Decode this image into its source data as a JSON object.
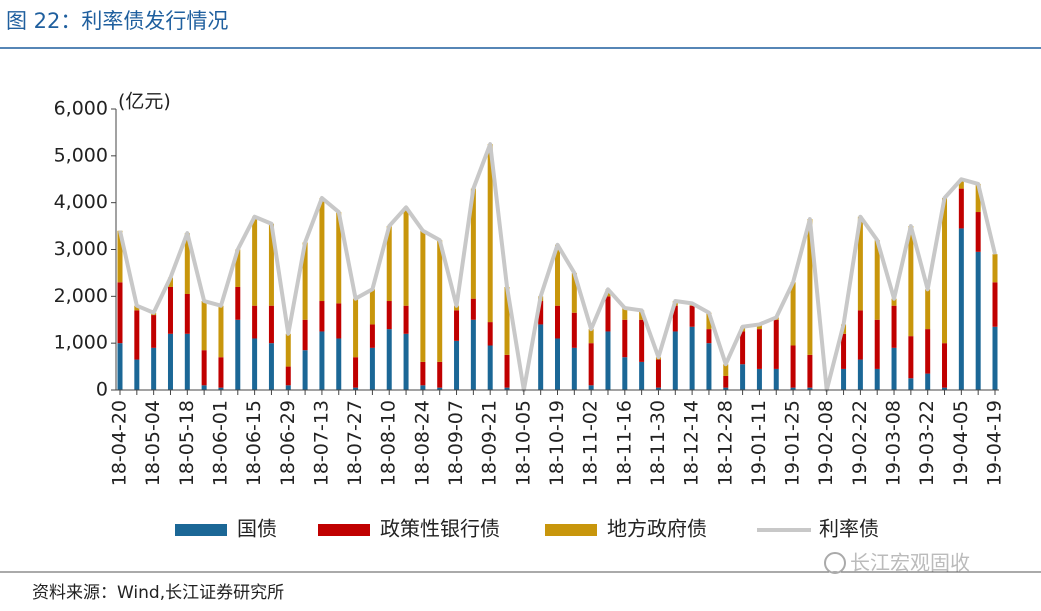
{
  "title": "图 22：利率债发行情况",
  "source": "资料来源：Wind,长江证券研究所",
  "watermark": "长江宏观固收",
  "chart_data": {
    "type": "bar",
    "stacked": true,
    "unit_label": "(亿元)",
    "categories": [
      "18-04-20",
      null,
      "18-05-04",
      null,
      "18-05-18",
      null,
      "18-06-01",
      null,
      "18-06-15",
      null,
      "18-06-29",
      null,
      "18-07-13",
      null,
      "18-07-27",
      null,
      "18-08-10",
      null,
      "18-08-24",
      null,
      "18-09-07",
      null,
      "18-09-21",
      null,
      "18-10-05",
      null,
      "18-10-19",
      null,
      "18-11-02",
      null,
      "18-11-16",
      null,
      "18-11-30",
      null,
      "18-12-14",
      null,
      "18-12-28",
      null,
      "19-01-11",
      null,
      "19-01-25",
      null,
      "19-02-08",
      null,
      "19-02-22",
      null,
      "19-03-08",
      null,
      "19-03-22",
      null,
      "19-04-05",
      null,
      "19-04-19"
    ],
    "series": [
      {
        "name": "国债",
        "color": "#1b6796",
        "values": [
          1000,
          650,
          900,
          1200,
          1200,
          100,
          50,
          1500,
          1100,
          1000,
          100,
          850,
          1250,
          1100,
          50,
          900,
          1300,
          1200,
          100,
          50,
          1050,
          1500,
          950,
          50,
          0,
          1400,
          1100,
          900,
          100,
          1250,
          700,
          600,
          50,
          1250,
          1350,
          1000,
          50,
          550,
          450,
          450,
          50,
          50,
          0,
          450,
          650,
          450,
          900,
          250,
          350,
          50,
          3450,
          2950,
          1350
        ]
      },
      {
        "name": "政策性银行债",
        "color": "#c00000",
        "values": [
          1300,
          1050,
          700,
          1000,
          850,
          750,
          650,
          700,
          700,
          800,
          400,
          650,
          650,
          750,
          650,
          500,
          600,
          600,
          500,
          550,
          650,
          450,
          500,
          700,
          0,
          500,
          700,
          750,
          900,
          750,
          800,
          900,
          600,
          550,
          450,
          300,
          250,
          700,
          850,
          1050,
          900,
          700,
          0,
          750,
          1050,
          1050,
          900,
          900,
          950,
          950,
          850,
          850,
          950
        ]
      },
      {
        "name": "地方政府债",
        "color": "#c8960c",
        "values": [
          1100,
          100,
          50,
          200,
          1300,
          1050,
          1100,
          800,
          1900,
          1750,
          700,
          1650,
          2200,
          1950,
          1250,
          750,
          1600,
          2100,
          2800,
          2600,
          100,
          2350,
          3800,
          1450,
          0,
          100,
          1300,
          850,
          300,
          150,
          250,
          200,
          50,
          100,
          50,
          350,
          250,
          100,
          100,
          50,
          1350,
          2900,
          0,
          200,
          2000,
          1700,
          150,
          2350,
          850,
          3100,
          200,
          600,
          600
        ]
      },
      {
        "name": "利率债",
        "color": "#c8c8c8",
        "type": "line",
        "values": [
          3400,
          1800,
          1650,
          2400,
          3350,
          1900,
          1800,
          3000,
          3700,
          3550,
          1200,
          3150,
          4100,
          3800,
          1950,
          2150,
          3500,
          3900,
          3400,
          3200,
          1800,
          4300,
          5250,
          2200,
          0,
          2000,
          3100,
          2500,
          1300,
          2150,
          1750,
          1700,
          700,
          1900,
          1850,
          1650,
          550,
          1350,
          1400,
          1550,
          2300,
          3650,
          0,
          1400,
          3700,
          3200,
          1950,
          3500,
          2150,
          4100,
          4500,
          4400,
          2900
        ]
      }
    ],
    "ylim": [
      0,
      6000
    ],
    "yticks": [
      0,
      {
        "value": 1000,
        "label": "1,000"
      },
      {
        "value": 2000,
        "label": "2,000"
      },
      {
        "value": 3000,
        "label": "3,000"
      },
      {
        "value": 4000,
        "label": "4,000"
      },
      {
        "value": 5000,
        "label": "5,000"
      },
      {
        "value": 6000,
        "label": "6,000"
      }
    ],
    "grid": false
  }
}
